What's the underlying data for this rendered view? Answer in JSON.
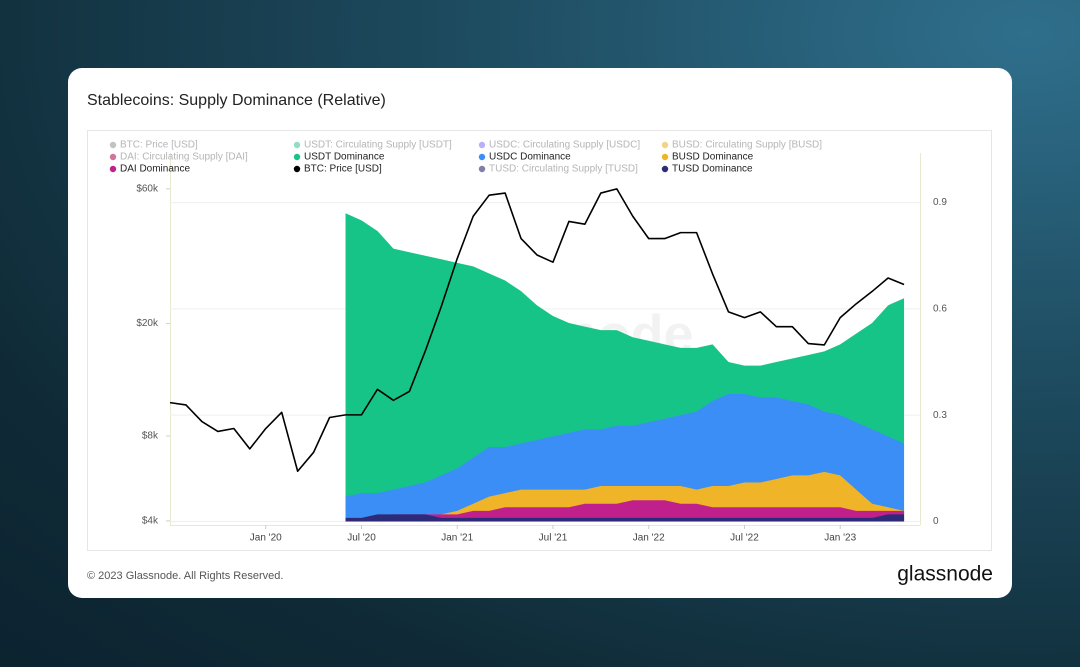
{
  "chart_data": {
    "type": "area",
    "title": "Stablecoins: Supply Dominance (Relative)",
    "watermark": "glassnode",
    "footer": "© 2023 Glassnode. All Rights Reserved.",
    "logo": "glassnode",
    "x": [
      "2019-07",
      "2019-08",
      "2019-09",
      "2019-10",
      "2019-11",
      "2019-12",
      "2020-01",
      "2020-02",
      "2020-03",
      "2020-04",
      "2020-05",
      "2020-06",
      "2020-07",
      "2020-08",
      "2020-09",
      "2020-10",
      "2020-11",
      "2020-12",
      "2021-01",
      "2021-02",
      "2021-03",
      "2021-04",
      "2021-05",
      "2021-06",
      "2021-07",
      "2021-08",
      "2021-09",
      "2021-10",
      "2021-11",
      "2021-12",
      "2022-01",
      "2022-02",
      "2022-03",
      "2022-04",
      "2022-05",
      "2022-06",
      "2022-07",
      "2022-08",
      "2022-09",
      "2022-10",
      "2022-11",
      "2022-12",
      "2023-01",
      "2023-02",
      "2023-03",
      "2023-04",
      "2023-05"
    ],
    "xlim": [
      "2019-07",
      "2023-06"
    ],
    "xticks": [
      {
        "value": "2020-01",
        "label": "Jan '20"
      },
      {
        "value": "2020-07",
        "label": "Jul '20"
      },
      {
        "value": "2021-01",
        "label": "Jan '21"
      },
      {
        "value": "2021-07",
        "label": "Jul '21"
      },
      {
        "value": "2022-01",
        "label": "Jan '22"
      },
      {
        "value": "2022-07",
        "label": "Jul '22"
      },
      {
        "value": "2023-01",
        "label": "Jan '23"
      }
    ],
    "ylim": [
      3870,
      80400
    ],
    "log_scale": true,
    "yticks": [
      {
        "value": 4000,
        "label": "$4k"
      },
      {
        "value": 8000,
        "label": "$8k"
      },
      {
        "value": 20000,
        "label": "$20k"
      },
      {
        "value": 60000,
        "label": "$60k"
      }
    ],
    "y2lim": [
      -0.01,
      1.04
    ],
    "y2ticks": [
      0,
      0.3,
      0.6,
      0.9
    ],
    "grid": true,
    "series": [
      {
        "name": "BTC: Price [USD]",
        "color": "#9a9a9a",
        "visible": false
      },
      {
        "name": "USDT: Circulating Supply [USDT]",
        "color": "#4cc79b",
        "visible": false
      },
      {
        "name": "USDC: Circulating Supply [USDC]",
        "color": "#8b7cf6",
        "visible": false
      },
      {
        "name": "BUSD: Circulating Supply [BUSD]",
        "color": "#e8b63a",
        "visible": false
      },
      {
        "name": "DAI: Circulating Supply [DAI]",
        "color": "#b0175e",
        "visible": false
      },
      {
        "name": "USDT Dominance",
        "color": "#17c487",
        "type": "area",
        "axis": "y2",
        "visible": true,
        "values": [
          null,
          null,
          null,
          null,
          null,
          null,
          null,
          null,
          null,
          null,
          null,
          0.87,
          0.85,
          0.82,
          0.77,
          0.76,
          0.75,
          0.74,
          0.73,
          0.72,
          0.7,
          0.68,
          0.65,
          0.61,
          0.58,
          0.56,
          0.55,
          0.54,
          0.54,
          0.52,
          0.51,
          0.5,
          0.49,
          0.49,
          0.5,
          0.45,
          0.44,
          0.44,
          0.45,
          0.46,
          0.47,
          0.48,
          0.5,
          0.53,
          0.56,
          0.61,
          0.63
        ]
      },
      {
        "name": "USDC Dominance",
        "color": "#3a8ef6",
        "type": "area",
        "axis": "y2",
        "visible": true,
        "values": [
          null,
          null,
          null,
          null,
          null,
          null,
          null,
          null,
          null,
          null,
          null,
          0.07,
          0.08,
          0.08,
          0.09,
          0.1,
          0.11,
          0.13,
          0.15,
          0.18,
          0.21,
          0.21,
          0.22,
          0.23,
          0.24,
          0.25,
          0.26,
          0.26,
          0.27,
          0.27,
          0.28,
          0.29,
          0.3,
          0.31,
          0.34,
          0.36,
          0.36,
          0.35,
          0.35,
          0.34,
          0.33,
          0.31,
          0.3,
          0.28,
          0.26,
          0.24,
          0.22
        ]
      },
      {
        "name": "BUSD Dominance",
        "color": "#f0b429",
        "type": "area",
        "axis": "y2",
        "visible": true,
        "values": [
          null,
          null,
          null,
          null,
          null,
          null,
          null,
          null,
          null,
          null,
          null,
          0.01,
          0.01,
          0.01,
          0.01,
          0.01,
          0.01,
          0.02,
          0.03,
          0.05,
          0.07,
          0.08,
          0.09,
          0.09,
          0.09,
          0.09,
          0.09,
          0.1,
          0.1,
          0.1,
          0.1,
          0.1,
          0.1,
          0.09,
          0.1,
          0.1,
          0.11,
          0.11,
          0.12,
          0.13,
          0.13,
          0.14,
          0.13,
          0.09,
          0.05,
          0.04,
          0.03
        ]
      },
      {
        "name": "DAI Dominance",
        "color": "#c0208c",
        "type": "area",
        "axis": "y2",
        "visible": true,
        "values": [
          null,
          null,
          null,
          null,
          null,
          null,
          null,
          null,
          null,
          null,
          null,
          0.01,
          0.01,
          0.01,
          0.02,
          0.02,
          0.02,
          0.02,
          0.02,
          0.03,
          0.03,
          0.04,
          0.04,
          0.04,
          0.04,
          0.04,
          0.05,
          0.05,
          0.05,
          0.06,
          0.06,
          0.06,
          0.05,
          0.05,
          0.04,
          0.04,
          0.04,
          0.04,
          0.04,
          0.04,
          0.04,
          0.04,
          0.04,
          0.03,
          0.03,
          0.03,
          0.03
        ]
      },
      {
        "name": "BTC: Price [USD]",
        "color": "#000000",
        "type": "line",
        "axis": "y",
        "visible": true,
        "values": [
          10500,
          10300,
          9000,
          8300,
          8500,
          7200,
          8500,
          9700,
          6000,
          7000,
          9300,
          9500,
          9500,
          11700,
          10700,
          11500,
          16000,
          23000,
          34000,
          48000,
          57000,
          58000,
          40000,
          35000,
          33000,
          46000,
          45000,
          58000,
          60000,
          48000,
          40000,
          40000,
          42000,
          42000,
          30000,
          22000,
          21000,
          22000,
          19500,
          19500,
          17000,
          16800,
          21000,
          23500,
          26000,
          29000,
          27500
        ]
      },
      {
        "name": "TUSD: Circulating Supply [TUSD]",
        "color": "#2b2b6b",
        "visible": false
      },
      {
        "name": "TUSD Dominance",
        "color": "#2e2a7a",
        "type": "area",
        "axis": "y2",
        "visible": true,
        "values": [
          null,
          null,
          null,
          null,
          null,
          null,
          null,
          null,
          null,
          null,
          null,
          0.01,
          0.01,
          0.02,
          0.02,
          0.02,
          0.02,
          0.01,
          0.01,
          0.01,
          0.01,
          0.01,
          0.01,
          0.01,
          0.01,
          0.01,
          0.01,
          0.01,
          0.01,
          0.01,
          0.01,
          0.01,
          0.01,
          0.01,
          0.01,
          0.01,
          0.01,
          0.01,
          0.01,
          0.01,
          0.01,
          0.01,
          0.01,
          0.01,
          0.01,
          0.02,
          0.02
        ]
      }
    ]
  }
}
